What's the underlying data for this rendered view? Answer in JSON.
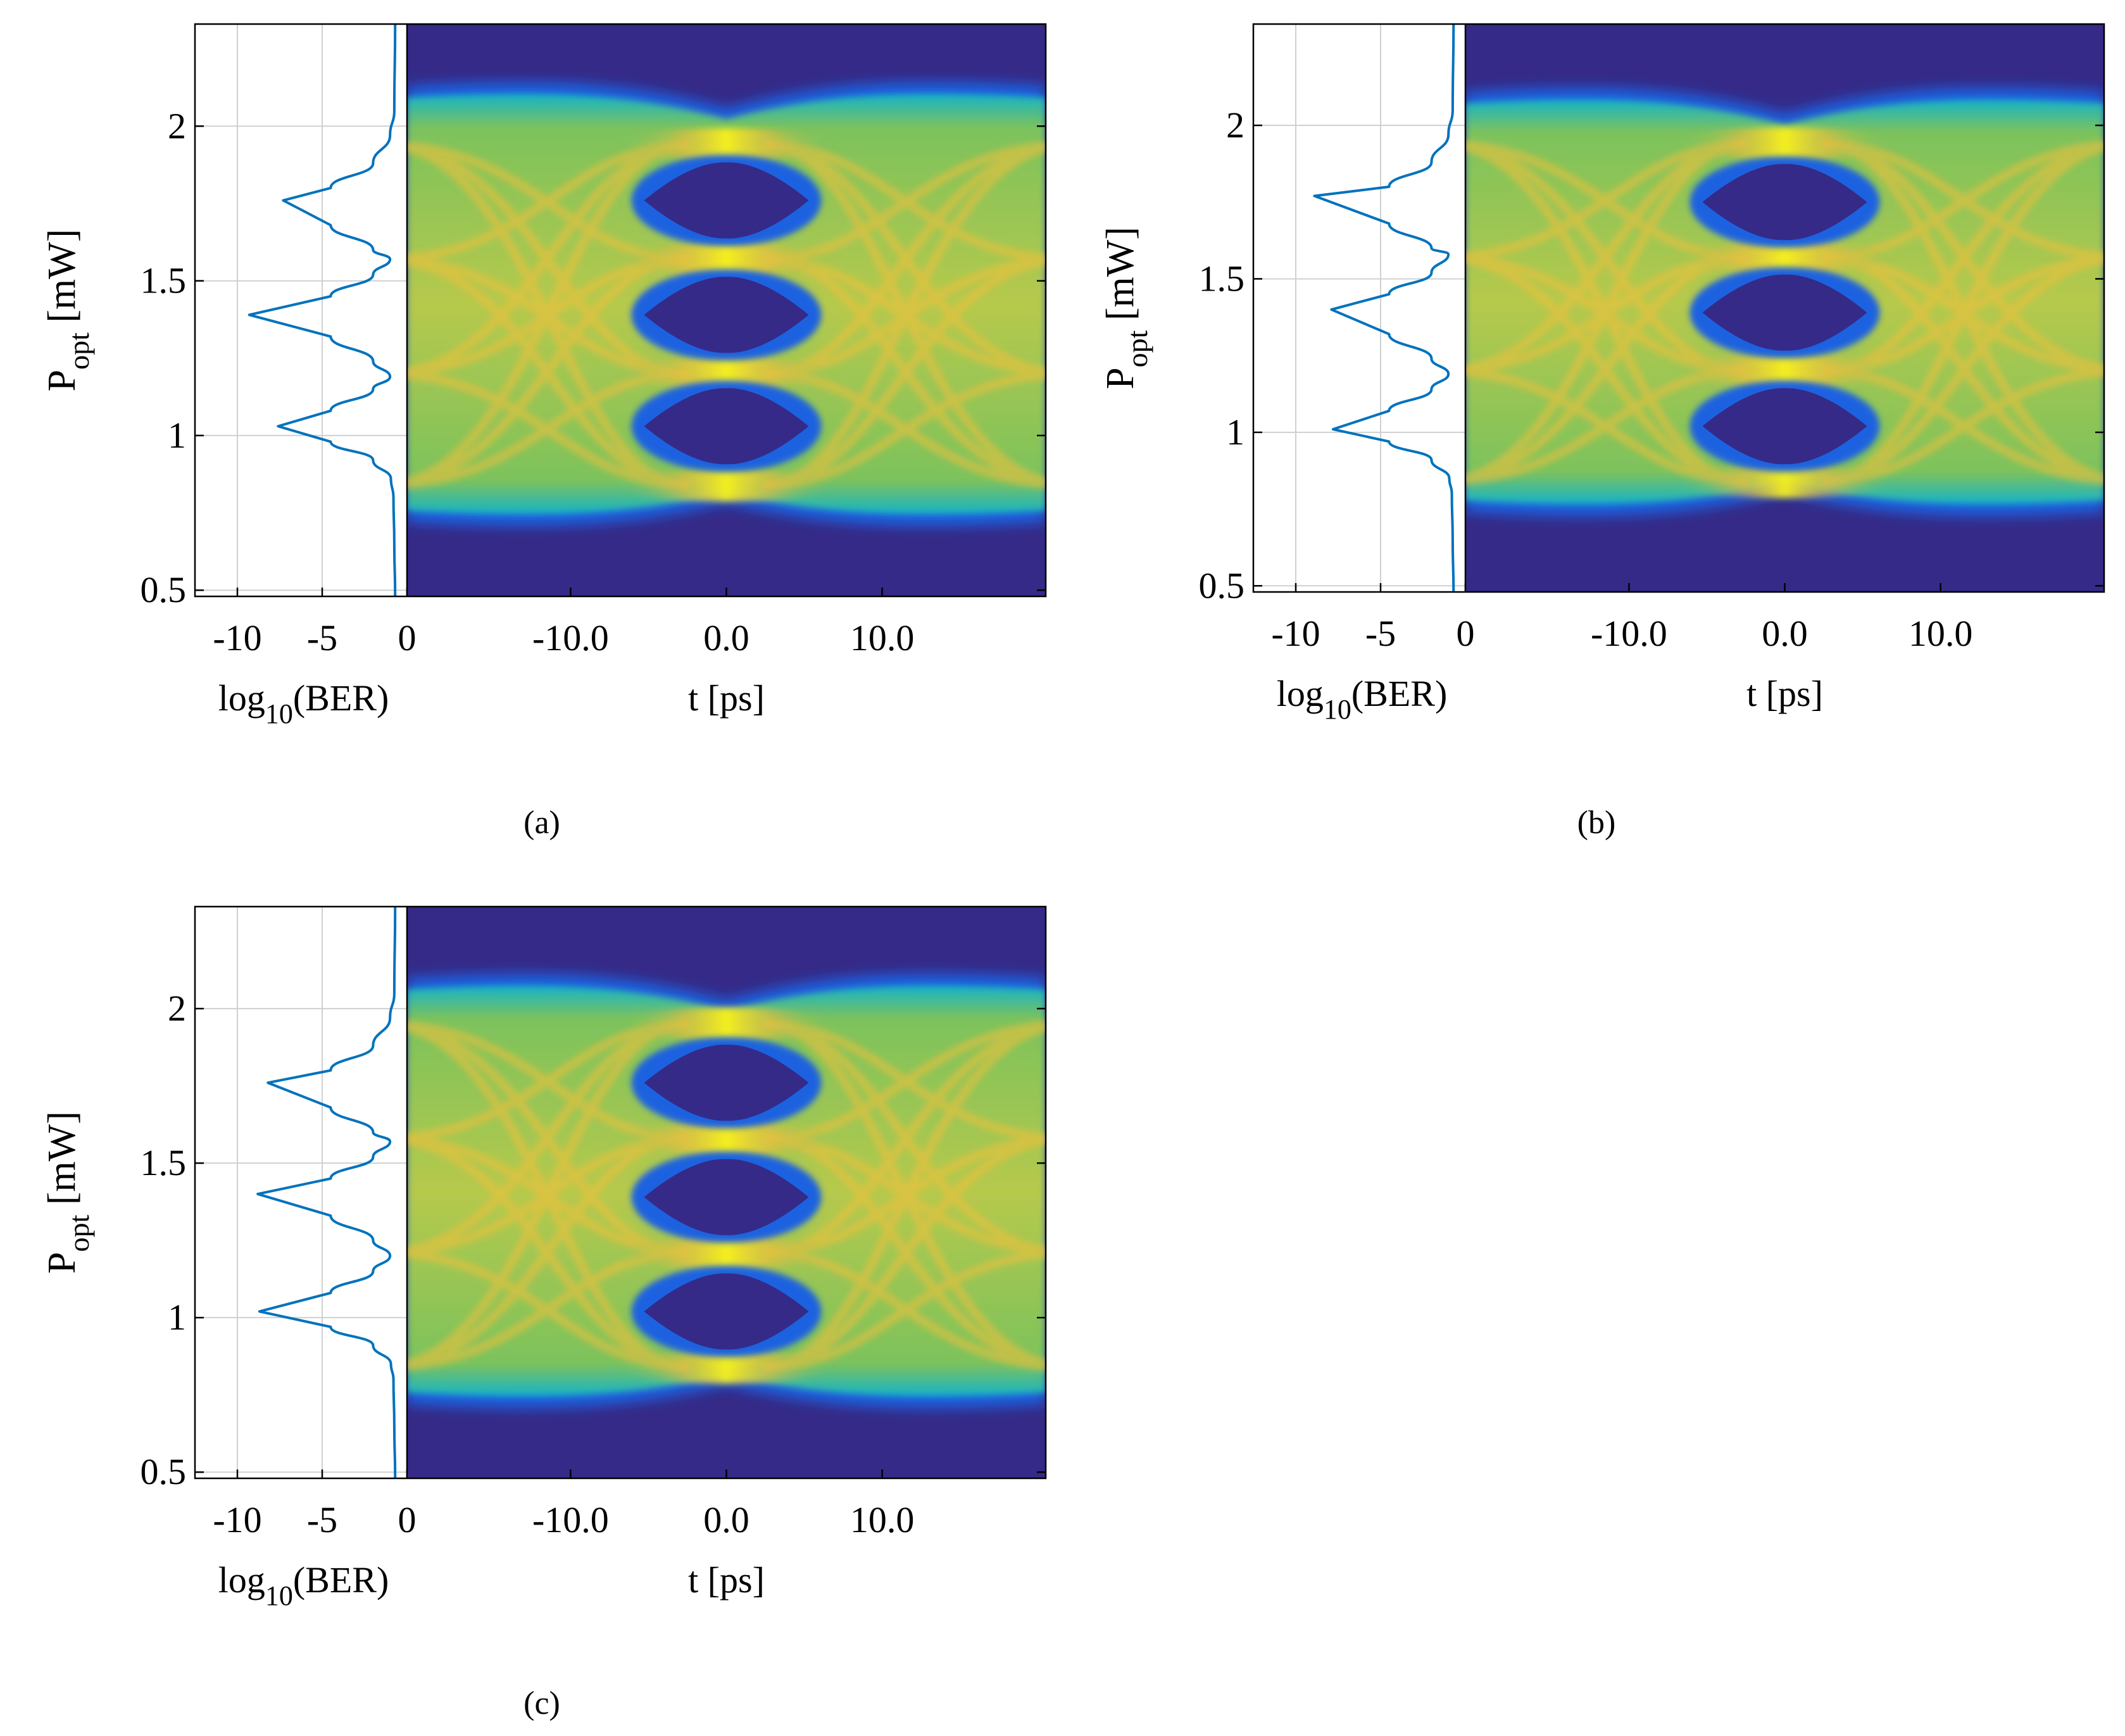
{
  "colors": {
    "eye_dark": "#352a87",
    "eye_blue": "#1d62e0",
    "eye_cyan": "#12b3c8",
    "eye_green": "#7cc25c",
    "eye_yellow": "#f5bf3a",
    "eye_bright": "#f9f21c",
    "ber_line": "#0072bd",
    "grid": "#d0d0d0",
    "axis": "#000000"
  },
  "chart_data": [
    {
      "type": "line",
      "panel": "(a)",
      "ber_plot": {
        "xlabel": "log10(BER)",
        "xlabel_main": "log",
        "xlabel_sub": "10",
        "xlabel_tail": "(BER)",
        "ylabel_main": "P",
        "ylabel_sub": "opt",
        "ylabel_tail": " [mW]",
        "xlim": [
          -12.5,
          0
        ],
        "ylim": [
          0.48,
          2.33
        ],
        "xticks": [
          -10,
          -5,
          0
        ],
        "xtick_labels": [
          "-10",
          "-5",
          "0"
        ],
        "yticks": [
          0.5,
          1,
          1.5,
          2
        ],
        "ytick_labels": [
          "0.5",
          "1",
          "1.5",
          "2"
        ],
        "grid": true,
        "series": {
          "x": [
            -0.7,
            -0.75,
            -1.0,
            -2.0,
            -4.5,
            -7.3,
            -4.5,
            -2.0,
            -1.0,
            -2.0,
            -4.5,
            -9.3,
            -4.5,
            -2.0,
            -1.0,
            -2.0,
            -4.5,
            -7.6,
            -4.5,
            -2.0,
            -0.95,
            -0.8,
            -0.75,
            -0.7
          ],
          "y": [
            2.33,
            2.05,
            1.97,
            1.88,
            1.8,
            1.76,
            1.68,
            1.6,
            1.57,
            1.52,
            1.45,
            1.39,
            1.32,
            1.24,
            1.19,
            1.15,
            1.08,
            1.03,
            0.98,
            0.92,
            0.86,
            0.8,
            0.65,
            0.48
          ]
        }
      },
      "eye_diagram": {
        "type": "heatmap",
        "xlabel": "t  [ps]",
        "xlim": [
          -20.5,
          20.5
        ],
        "xticks": [
          -10,
          0,
          10
        ],
        "xtick_labels": [
          "-10.0",
          "0.0",
          "10.0"
        ],
        "ylim": [
          0.48,
          2.33
        ],
        "levels_mw": [
          0.84,
          1.2,
          1.57,
          1.94
        ],
        "eye_centers_mw": [
          1.03,
          1.39,
          1.76
        ],
        "upper_envelope_mw": 2.15,
        "lower_envelope_mw": 0.7,
        "crossing_ps": 0.0
      }
    },
    {
      "type": "line",
      "panel": "(b)",
      "ber_plot": {
        "xlabel": "log10(BER)",
        "xlabel_main": "log",
        "xlabel_sub": "10",
        "xlabel_tail": "(BER)",
        "ylabel_main": "P",
        "ylabel_sub": "opt",
        "ylabel_tail": " [mW]",
        "xlim": [
          -12.5,
          0
        ],
        "ylim": [
          0.48,
          2.33
        ],
        "xticks": [
          -10,
          -5,
          0
        ],
        "xtick_labels": [
          "-10",
          "-5",
          "0"
        ],
        "yticks": [
          0.5,
          1,
          1.5,
          2
        ],
        "ytick_labels": [
          "0.5",
          "1",
          "1.5",
          "2"
        ],
        "grid": true,
        "series": {
          "x": [
            -0.7,
            -0.75,
            -1.0,
            -2.0,
            -4.5,
            -8.9,
            -4.5,
            -2.0,
            -1.0,
            -2.0,
            -4.5,
            -7.9,
            -4.5,
            -2.0,
            -1.0,
            -2.0,
            -4.5,
            -7.8,
            -4.5,
            -2.0,
            -0.95,
            -0.8,
            -0.75,
            -0.7
          ],
          "y": [
            2.33,
            2.05,
            1.97,
            1.88,
            1.8,
            1.77,
            1.68,
            1.6,
            1.58,
            1.52,
            1.45,
            1.4,
            1.32,
            1.24,
            1.19,
            1.14,
            1.07,
            1.01,
            0.97,
            0.91,
            0.85,
            0.8,
            0.65,
            0.48
          ]
        }
      },
      "eye_diagram": {
        "type": "heatmap",
        "xlabel": "t  [ps]",
        "xlim": [
          -20.5,
          20.5
        ],
        "xticks": [
          -10,
          0,
          10
        ],
        "xtick_labels": [
          "-10.0",
          "0.0",
          "10.0"
        ],
        "ylim": [
          0.48,
          2.33
        ],
        "levels_mw": [
          0.84,
          1.2,
          1.57,
          1.94
        ],
        "eye_centers_mw": [
          1.02,
          1.39,
          1.75
        ],
        "upper_envelope_mw": 2.13,
        "lower_envelope_mw": 0.72,
        "crossing_ps": 0.0
      }
    },
    {
      "type": "line",
      "panel": "(c)",
      "ber_plot": {
        "xlabel": "log10(BER)",
        "xlabel_main": "log",
        "xlabel_sub": "10",
        "xlabel_tail": "(BER)",
        "ylabel_main": "P",
        "ylabel_sub": "opt",
        "ylabel_tail": " [mW]",
        "xlim": [
          -12.5,
          0
        ],
        "ylim": [
          0.48,
          2.33
        ],
        "xticks": [
          -10,
          -5,
          0
        ],
        "xtick_labels": [
          "-10",
          "-5",
          "0"
        ],
        "yticks": [
          0.5,
          1,
          1.5,
          2
        ],
        "ytick_labels": [
          "0.5",
          "1",
          "1.5",
          "2"
        ],
        "grid": true,
        "series": {
          "x": [
            -0.7,
            -0.75,
            -1.0,
            -2.0,
            -4.5,
            -8.2,
            -4.5,
            -2.0,
            -1.0,
            -2.0,
            -4.5,
            -8.8,
            -4.5,
            -2.0,
            -1.0,
            -2.0,
            -4.5,
            -8.7,
            -4.5,
            -2.0,
            -0.95,
            -0.8,
            -0.75,
            -0.7
          ],
          "y": [
            2.33,
            2.05,
            1.97,
            1.88,
            1.8,
            1.76,
            1.68,
            1.6,
            1.57,
            1.52,
            1.45,
            1.4,
            1.33,
            1.25,
            1.2,
            1.15,
            1.08,
            1.02,
            0.97,
            0.91,
            0.85,
            0.8,
            0.65,
            0.48
          ]
        }
      },
      "eye_diagram": {
        "type": "heatmap",
        "xlabel": "t  [ps]",
        "xlim": [
          -20.5,
          20.5
        ],
        "xticks": [
          -10,
          0,
          10
        ],
        "xtick_labels": [
          "-10.0",
          "0.0",
          "10.0"
        ],
        "ylim": [
          0.48,
          2.33
        ],
        "levels_mw": [
          0.84,
          1.21,
          1.58,
          1.95
        ],
        "eye_centers_mw": [
          1.02,
          1.39,
          1.76
        ],
        "upper_envelope_mw": 2.12,
        "lower_envelope_mw": 0.7,
        "crossing_ps": 0.0
      }
    }
  ]
}
